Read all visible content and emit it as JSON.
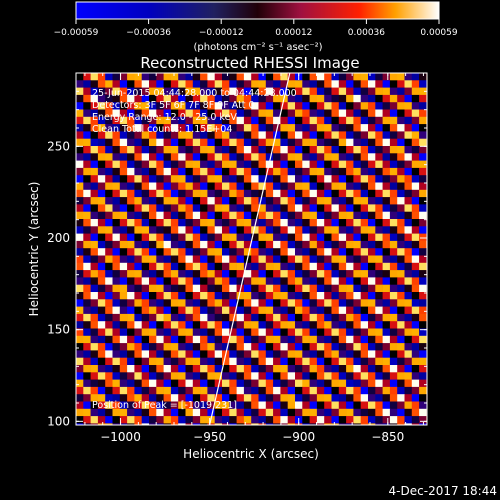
{
  "colorbar": {
    "ticks": [
      "-0.00059",
      "-0.00036",
      "-0.00012",
      "0.00012",
      "0.00036",
      "0.00059"
    ],
    "units": "(photons cm⁻² s⁻¹ asec⁻²)",
    "range": [
      -0.00059,
      0.00059
    ]
  },
  "chart_data": {
    "type": "heatmap",
    "title": "Reconstructed RHESSI Image",
    "xlabel": "Heliocentric X (arcsec)",
    "ylabel": "Heliocentric Y (arcsec)",
    "xlim": [
      -1025,
      -828
    ],
    "ylim": [
      98,
      290
    ],
    "xticks": [
      -1000,
      -950,
      -900,
      -850
    ],
    "yticks": [
      100,
      150,
      200,
      250
    ],
    "xtick_labels": [
      "−1000",
      "−950",
      "−900",
      "−850"
    ],
    "ytick_labels": [
      "100",
      "150",
      "200",
      "250"
    ],
    "pattern": "diagonal stripes",
    "limb_line": [
      [
        -950,
        98
      ],
      [
        -905,
        290
      ]
    ],
    "annotations": {
      "time": "25-Jun-2015 04:44:28.000 to 04:44:28.000",
      "detectors": "Detectors: 3F 5F 6F 7F 8F 9F Att 0",
      "energy": "Energy Range: 12.0 - 25.0 keV",
      "method": "Clean     Total counts: 1.15E+04",
      "peak": "Position of Peak = [-1019,231]"
    }
  },
  "footer": {
    "date": "4-Dec-2017 18:44"
  }
}
